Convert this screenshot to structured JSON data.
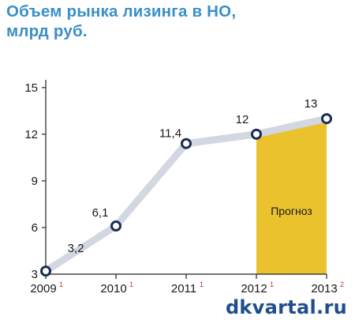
{
  "chart_data": {
    "type": "line",
    "title": "Объем рынка лизинга в НО, млрд руб.",
    "title_lines": [
      "Объем рынка лизинга в НО,",
      "млрд руб."
    ],
    "categories": [
      "2009",
      "2010",
      "2011",
      "2012",
      "2013"
    ],
    "category_notes": [
      "1",
      "1",
      "1",
      "1",
      "2"
    ],
    "values": [
      3.2,
      6.1,
      11.4,
      12,
      13
    ],
    "data_labels": [
      "3,2",
      "6,1",
      "11,4",
      "12",
      "13"
    ],
    "ylim": [
      3,
      15.5
    ],
    "yticks": [
      3,
      6,
      9,
      12,
      15
    ],
    "forecast": {
      "from": "2012",
      "to": "2013",
      "label": "Прогноз"
    },
    "colors": {
      "line": "#d3d7e2",
      "marker_stroke": "#1c2d55",
      "forecast": "#e9c22d",
      "title": "#3a8fc6"
    }
  },
  "watermark": "dkvartal.ru"
}
